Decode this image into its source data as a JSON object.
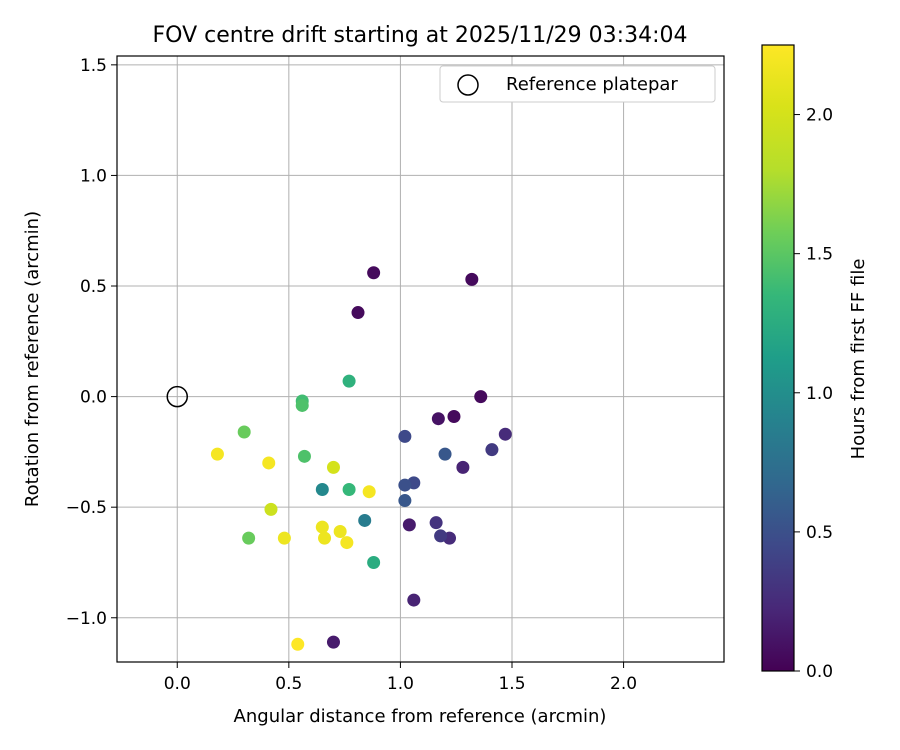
{
  "chart_data": {
    "type": "scatter",
    "title": "FOV centre drift starting at 2025/11/29 03:34:04",
    "xlabel": "Angular distance from reference (arcmin)",
    "ylabel": "Rotation from reference (arcmin)",
    "xlim": [
      -0.27,
      2.45
    ],
    "ylim": [
      -1.2,
      1.54
    ],
    "xticks": [
      0.0,
      0.5,
      1.0,
      1.5,
      2.0
    ],
    "xtick_labels": [
      "0.0",
      "0.5",
      "1.0",
      "1.5",
      "2.0"
    ],
    "yticks": [
      -1.0,
      -0.5,
      0.0,
      0.5,
      1.0,
      1.5
    ],
    "ytick_labels": [
      "−1.0",
      "−0.5",
      "0.0",
      "0.5",
      "1.0",
      "1.5"
    ],
    "grid": true,
    "legend": {
      "position": "top-right",
      "entries": [
        "Reference platepar"
      ]
    },
    "reference_point": {
      "x": 0.0,
      "y": 0.0
    },
    "colorbar": {
      "label": "Hours from first FF file",
      "range": [
        0.0,
        2.25
      ],
      "ticks": [
        0.0,
        0.5,
        1.0,
        1.5,
        2.0
      ],
      "tick_labels": [
        "0.0",
        "0.5",
        "1.0",
        "1.5",
        "2.0"
      ],
      "colormap": "viridis"
    },
    "points": [
      {
        "x": 1.36,
        "y": 0.0,
        "c": 0.05
      },
      {
        "x": 1.24,
        "y": -0.09,
        "c": 0.05
      },
      {
        "x": 1.17,
        "y": -0.1,
        "c": 0.1
      },
      {
        "x": 0.88,
        "y": 0.56,
        "c": 0.05
      },
      {
        "x": 1.32,
        "y": 0.53,
        "c": 0.05
      },
      {
        "x": 0.81,
        "y": 0.38,
        "c": 0.05
      },
      {
        "x": 0.7,
        "y": -1.11,
        "c": 0.15
      },
      {
        "x": 1.06,
        "y": -0.92,
        "c": 0.2
      },
      {
        "x": 1.04,
        "y": -0.58,
        "c": 0.15
      },
      {
        "x": 1.28,
        "y": -0.32,
        "c": 0.2
      },
      {
        "x": 1.47,
        "y": -0.17,
        "c": 0.25
      },
      {
        "x": 1.22,
        "y": -0.64,
        "c": 0.25
      },
      {
        "x": 1.16,
        "y": -0.57,
        "c": 0.3
      },
      {
        "x": 1.18,
        "y": -0.63,
        "c": 0.35
      },
      {
        "x": 1.41,
        "y": -0.24,
        "c": 0.35
      },
      {
        "x": 1.02,
        "y": -0.18,
        "c": 0.45
      },
      {
        "x": 1.06,
        "y": -0.39,
        "c": 0.45
      },
      {
        "x": 1.02,
        "y": -0.4,
        "c": 0.5
      },
      {
        "x": 1.02,
        "y": -0.47,
        "c": 0.55
      },
      {
        "x": 1.2,
        "y": -0.26,
        "c": 0.55
      },
      {
        "x": 0.84,
        "y": -0.56,
        "c": 0.85
      },
      {
        "x": 0.65,
        "y": -0.42,
        "c": 0.95
      },
      {
        "x": 0.88,
        "y": -0.75,
        "c": 1.25
      },
      {
        "x": 0.77,
        "y": 0.07,
        "c": 1.3
      },
      {
        "x": 0.56,
        "y": -0.02,
        "c": 1.4
      },
      {
        "x": 0.56,
        "y": -0.04,
        "c": 1.45
      },
      {
        "x": 0.57,
        "y": -0.27,
        "c": 1.45
      },
      {
        "x": 0.77,
        "y": -0.42,
        "c": 1.35
      },
      {
        "x": 0.3,
        "y": -0.16,
        "c": 1.55
      },
      {
        "x": 0.32,
        "y": -0.64,
        "c": 1.55
      },
      {
        "x": 0.42,
        "y": -0.51,
        "c": 1.95
      },
      {
        "x": 0.7,
        "y": -0.32,
        "c": 2.0
      },
      {
        "x": 0.18,
        "y": -0.26,
        "c": 2.2
      },
      {
        "x": 0.41,
        "y": -0.3,
        "c": 2.2
      },
      {
        "x": 0.48,
        "y": -0.64,
        "c": 2.15
      },
      {
        "x": 0.65,
        "y": -0.59,
        "c": 2.15
      },
      {
        "x": 0.66,
        "y": -0.64,
        "c": 2.15
      },
      {
        "x": 0.73,
        "y": -0.61,
        "c": 2.15
      },
      {
        "x": 0.76,
        "y": -0.66,
        "c": 2.2
      },
      {
        "x": 0.86,
        "y": -0.43,
        "c": 2.2
      },
      {
        "x": 0.54,
        "y": -1.12,
        "c": 2.25
      }
    ]
  }
}
